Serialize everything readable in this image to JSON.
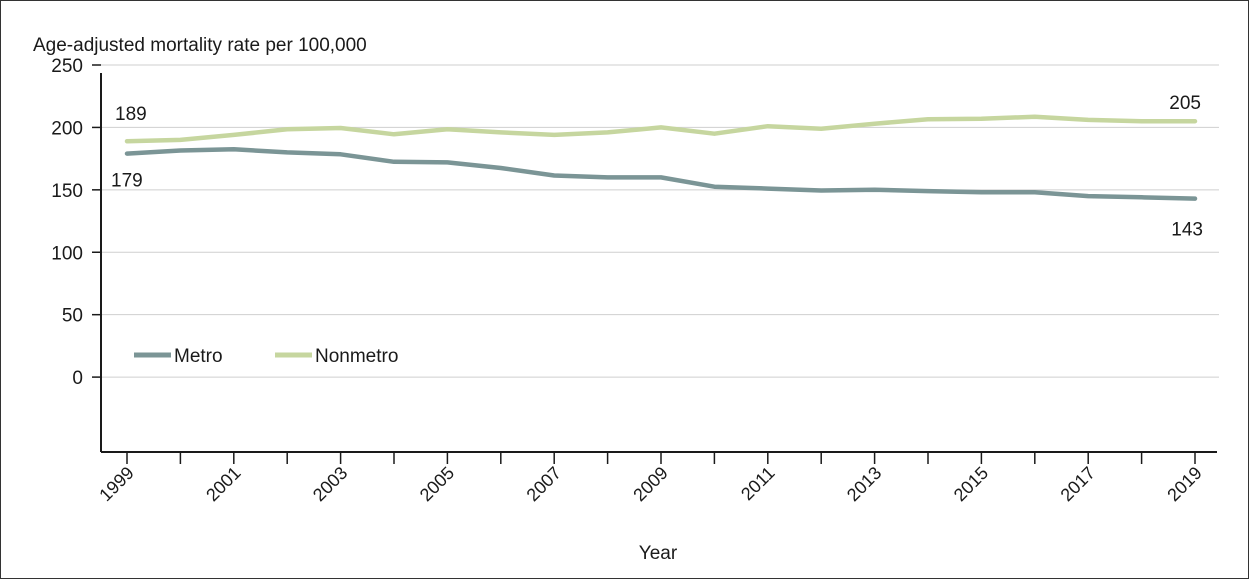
{
  "chart_data": {
    "type": "line",
    "title": "",
    "ylabel": "Age-adjusted mortality rate per 100,000",
    "xlabel": "Year",
    "ylim": [
      -60,
      250
    ],
    "xlim": [
      1999,
      2019
    ],
    "y_ticks": [
      0,
      50,
      100,
      150,
      200,
      250
    ],
    "x_ticks": [
      "1999",
      "2001",
      "2003",
      "2005",
      "2007",
      "2009",
      "2011",
      "2013",
      "2015",
      "2017",
      "2019"
    ],
    "grid": "horizontal",
    "legend_position": "bottom-left",
    "x": [
      1999,
      2000,
      2001,
      2002,
      2003,
      2004,
      2005,
      2006,
      2007,
      2008,
      2009,
      2010,
      2011,
      2012,
      2013,
      2014,
      2015,
      2016,
      2017,
      2018,
      2019
    ],
    "series": [
      {
        "name": "Metro",
        "color": "#7b9596",
        "values": [
          179,
          181.5,
          182.5,
          180,
          178.5,
          172.5,
          172,
          167.5,
          161.5,
          160,
          160,
          152.5,
          151,
          149.5,
          150,
          149,
          148,
          148,
          145,
          144,
          143
        ],
        "first_label": "179",
        "last_label": "143"
      },
      {
        "name": "Nonmetro",
        "color": "#c6d69f",
        "values": [
          189,
          190,
          194,
          198.5,
          199.5,
          194.5,
          198.5,
          196,
          194,
          196,
          200,
          195,
          201,
          199,
          203,
          206.5,
          207,
          208.5,
          206,
          205,
          205
        ],
        "first_label": "189",
        "last_label": "205"
      }
    ]
  }
}
